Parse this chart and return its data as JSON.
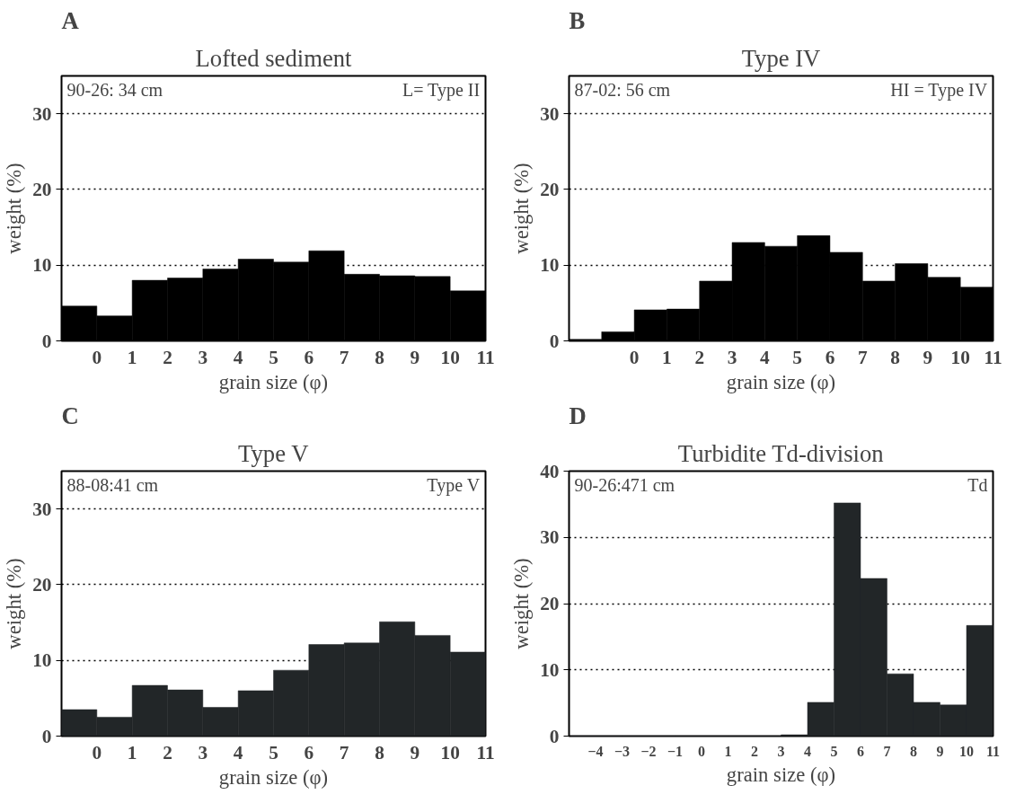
{
  "chart_data": [
    {
      "type": "histogram",
      "title": "Lofted sediment",
      "xlabel": "grain size (φ)",
      "ylabel": "weight (%)",
      "annotations": [
        "A",
        "90-26: 34 cm",
        "L= Type II"
      ],
      "bins": [
        -1,
        0,
        1,
        2,
        3,
        4,
        5,
        6,
        7,
        8,
        9,
        10,
        11
      ],
      "values": [
        4.6,
        3.3,
        8.0,
        8.3,
        9.5,
        10.8,
        10.4,
        11.9,
        8.8,
        8.6,
        8.5,
        6.6
      ],
      "color": "#000000",
      "xlim": [
        -1,
        11
      ],
      "xticks": [
        0,
        1,
        2,
        3,
        4,
        5,
        6,
        7,
        8,
        9,
        10,
        11
      ],
      "ylim": [
        0,
        35
      ],
      "yticks": [
        0,
        10,
        20,
        30
      ],
      "grid": "y"
    },
    {
      "type": "histogram",
      "title": "Type IV",
      "xlabel": "grain size (φ)",
      "ylabel": "weight (%)",
      "annotations": [
        "B",
        "87-02: 56 cm",
        "HI = Type IV"
      ],
      "bins": [
        -2,
        -1,
        0,
        1,
        2,
        3,
        4,
        5,
        6,
        7,
        8,
        9,
        10,
        11
      ],
      "values": [
        0.2,
        1.2,
        4.1,
        4.2,
        7.9,
        13.0,
        12.5,
        13.9,
        11.7,
        7.9,
        10.2,
        8.4,
        7.1
      ],
      "color": "#000000",
      "xlim": [
        -2,
        11
      ],
      "xticks": [
        0,
        1,
        2,
        3,
        4,
        5,
        6,
        7,
        8,
        9,
        10,
        11
      ],
      "ylim": [
        0,
        35
      ],
      "yticks": [
        0,
        10,
        20,
        30
      ],
      "grid": "y"
    },
    {
      "type": "histogram",
      "title": "Type V",
      "xlabel": "grain size (φ)",
      "ylabel": "weight (%)",
      "annotations": [
        "C",
        "88-08:41 cm",
        "Type V"
      ],
      "bins": [
        -1,
        0,
        1,
        2,
        3,
        4,
        5,
        6,
        7,
        8,
        9,
        10,
        11
      ],
      "values": [
        3.5,
        2.5,
        6.7,
        6.1,
        3.8,
        6.0,
        8.7,
        12.1,
        12.3,
        15.1,
        13.3,
        11.1
      ],
      "color": "#222628",
      "xlim": [
        -1,
        11
      ],
      "xticks": [
        0,
        1,
        2,
        3,
        4,
        5,
        6,
        7,
        8,
        9,
        10,
        11
      ],
      "ylim": [
        0,
        35
      ],
      "yticks": [
        0,
        10,
        20,
        30
      ],
      "grid": "y"
    },
    {
      "type": "histogram",
      "title": "Turbidite Td-division",
      "xlabel": "grain size (φ)",
      "ylabel": "weight (%)",
      "annotations": [
        "D",
        "90-26:471 cm",
        "Td"
      ],
      "bins": [
        -5,
        -4,
        -3,
        -2,
        -1,
        0,
        1,
        2,
        3,
        4,
        5,
        6,
        7,
        8,
        9,
        10,
        11
      ],
      "values": [
        0,
        0,
        0,
        0,
        0,
        0,
        0,
        0,
        0.2,
        5.1,
        35.2,
        23.8,
        9.4,
        5.1,
        4.7,
        16.7
      ],
      "color": "#222628",
      "xlim": [
        -5,
        11
      ],
      "xticks": [
        -4,
        -3,
        -2,
        -1,
        0,
        1,
        2,
        3,
        4,
        5,
        6,
        7,
        8,
        9,
        10,
        11
      ],
      "ylim": [
        0,
        40
      ],
      "yticks": [
        0,
        10,
        20,
        30,
        40
      ],
      "grid": "y"
    }
  ]
}
